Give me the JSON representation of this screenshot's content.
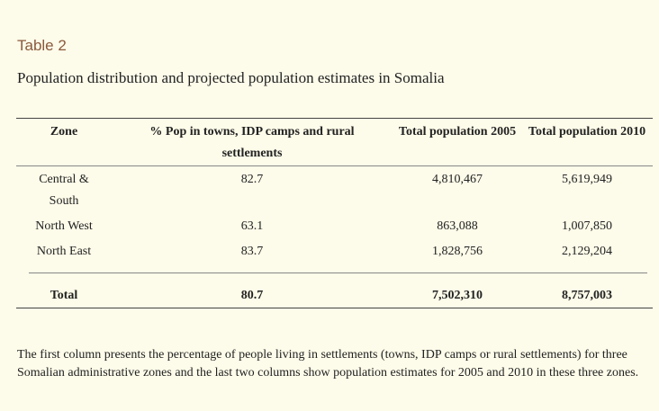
{
  "table_label": "Table 2",
  "table_title": "Population distribution and projected population estimates in Somalia",
  "table": {
    "headers": [
      "Zone",
      "% Pop in towns, IDP camps and rural settlements",
      "Total population 2005",
      "Total population 2010"
    ],
    "rows": [
      {
        "zone": "Central & South",
        "pct": "82.7",
        "pop2005": "4,810,467",
        "pop2010": "5,619,949"
      },
      {
        "zone": "North West",
        "pct": "63.1",
        "pop2005": "863,088",
        "pop2010": "1,007,850"
      },
      {
        "zone": "North East",
        "pct": "83.7",
        "pop2005": "1,828,756",
        "pop2010": "2,129,204"
      }
    ],
    "total": {
      "zone": "Total",
      "pct": "80.7",
      "pop2005": "7,502,310",
      "pop2010": "8,757,003"
    }
  },
  "caption": "The first column presents the percentage of people living in settlements (towns, IDP camps or rural settlements) for three Somalian administrative zones and the last two columns show population estimates for 2005 and 2010 in these three zones."
}
